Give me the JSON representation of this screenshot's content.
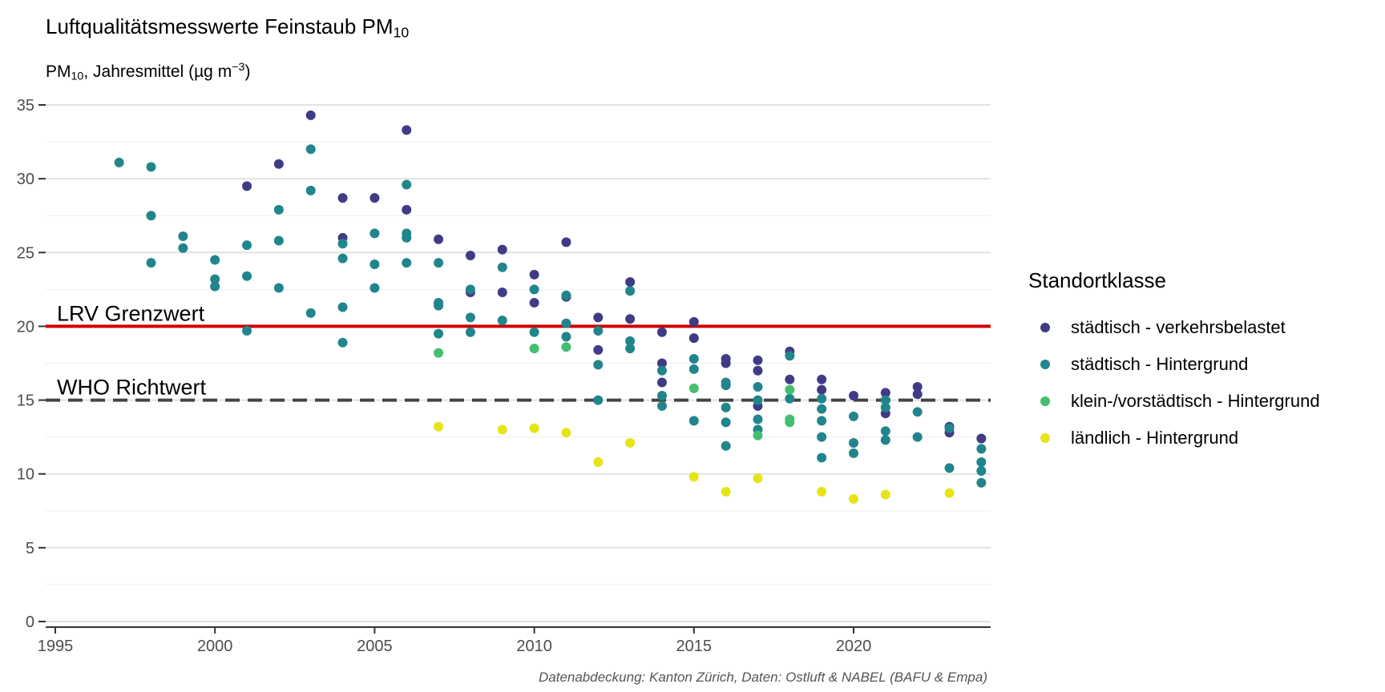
{
  "header": {
    "title_main": "Luftqualitätsmesswerte Feinstaub PM",
    "title_sub": "10",
    "subtitle_pm": "PM",
    "subtitle_sub": "10",
    "subtitle_rest": ", Jahresmittel (µg m",
    "subtitle_sup": "−3",
    "subtitle_end": ")"
  },
  "caption": "Datenabdeckung: Kanton Zürich, Daten: Ostluft & NABEL (BAFU & Empa)",
  "legend": {
    "title": "Standortklasse",
    "items": [
      {
        "label": "städtisch - verkehrsbelastet",
        "color": "#3f3c85"
      },
      {
        "label": "städtisch - Hintergrund",
        "color": "#21858c"
      },
      {
        "label": "klein-/vorstädtisch - Hintergrund",
        "color": "#44bf70"
      },
      {
        "label": "ländlich - Hintergrund",
        "color": "#e6e419"
      }
    ]
  },
  "chart_data": {
    "type": "scatter",
    "xlabel": "",
    "ylabel": "",
    "xlim": [
      1994.6,
      2024.3
    ],
    "ylim": [
      0,
      35
    ],
    "x_ticks": [
      1995,
      2000,
      2005,
      2010,
      2015,
      2020
    ],
    "y_ticks": [
      0,
      5,
      10,
      15,
      20,
      25,
      30,
      35
    ],
    "grid": true,
    "legend_position": "right",
    "reference_lines": [
      {
        "label": "LRV Grenzwert",
        "y": 20,
        "color": "#cc0000",
        "style": "solid"
      },
      {
        "label": "WHO Richtwert",
        "y": 15,
        "color": "#444444",
        "style": "dashed"
      }
    ],
    "series": [
      {
        "name": "städtisch - verkehrsbelastet",
        "color": "#3f3c85",
        "points": [
          [
            2001,
            29.5
          ],
          [
            2002,
            31.0
          ],
          [
            2003,
            34.3
          ],
          [
            2004,
            28.7
          ],
          [
            2004,
            26.0
          ],
          [
            2005,
            28.7
          ],
          [
            2006,
            33.3
          ],
          [
            2006,
            27.9
          ],
          [
            2007,
            25.9
          ],
          [
            2008,
            24.8
          ],
          [
            2008,
            22.3
          ],
          [
            2009,
            25.2
          ],
          [
            2009,
            22.3
          ],
          [
            2010,
            23.5
          ],
          [
            2010,
            21.6
          ],
          [
            2011,
            25.7
          ],
          [
            2011,
            22.0
          ],
          [
            2012,
            20.6
          ],
          [
            2012,
            18.4
          ],
          [
            2013,
            23.0
          ],
          [
            2013,
            20.5
          ],
          [
            2014,
            19.6
          ],
          [
            2014,
            17.5
          ],
          [
            2014,
            16.2
          ],
          [
            2015,
            20.3
          ],
          [
            2015,
            19.2
          ],
          [
            2016,
            17.8
          ],
          [
            2016,
            17.5
          ],
          [
            2017,
            17.7
          ],
          [
            2017,
            17.0
          ],
          [
            2017,
            14.6
          ],
          [
            2018,
            18.3
          ],
          [
            2018,
            16.4
          ],
          [
            2019,
            16.4
          ],
          [
            2019,
            15.7
          ],
          [
            2020,
            15.3
          ],
          [
            2021,
            15.5
          ],
          [
            2021,
            14.1
          ],
          [
            2022,
            15.9
          ],
          [
            2022,
            15.4
          ],
          [
            2023,
            13.2
          ],
          [
            2023,
            12.8
          ],
          [
            2024,
            12.4
          ]
        ]
      },
      {
        "name": "städtisch - Hintergrund",
        "color": "#21858c",
        "points": [
          [
            1997,
            31.1
          ],
          [
            1998,
            30.8
          ],
          [
            1998,
            27.5
          ],
          [
            1998,
            24.3
          ],
          [
            1999,
            26.1
          ],
          [
            1999,
            25.3
          ],
          [
            2000,
            24.5
          ],
          [
            2000,
            23.2
          ],
          [
            2000,
            22.7
          ],
          [
            2001,
            25.5
          ],
          [
            2001,
            23.4
          ],
          [
            2001,
            19.7
          ],
          [
            2002,
            27.9
          ],
          [
            2002,
            25.8
          ],
          [
            2002,
            22.6
          ],
          [
            2003,
            32.0
          ],
          [
            2003,
            29.2
          ],
          [
            2003,
            20.9
          ],
          [
            2004,
            25.6
          ],
          [
            2004,
            24.6
          ],
          [
            2004,
            21.3
          ],
          [
            2004,
            18.9
          ],
          [
            2005,
            26.3
          ],
          [
            2005,
            24.2
          ],
          [
            2005,
            22.6
          ],
          [
            2006,
            29.6
          ],
          [
            2006,
            26.3
          ],
          [
            2006,
            26.0
          ],
          [
            2006,
            24.3
          ],
          [
            2007,
            24.3
          ],
          [
            2007,
            21.6
          ],
          [
            2007,
            21.4
          ],
          [
            2007,
            19.5
          ],
          [
            2008,
            22.5
          ],
          [
            2008,
            20.6
          ],
          [
            2008,
            19.6
          ],
          [
            2009,
            24.0
          ],
          [
            2009,
            20.4
          ],
          [
            2010,
            22.5
          ],
          [
            2010,
            19.6
          ],
          [
            2011,
            22.1
          ],
          [
            2011,
            20.2
          ],
          [
            2011,
            19.3
          ],
          [
            2012,
            19.7
          ],
          [
            2012,
            17.4
          ],
          [
            2012,
            15.0
          ],
          [
            2013,
            22.4
          ],
          [
            2013,
            19.0
          ],
          [
            2013,
            18.5
          ],
          [
            2014,
            17.0
          ],
          [
            2014,
            15.3
          ],
          [
            2014,
            14.6
          ],
          [
            2015,
            17.8
          ],
          [
            2015,
            17.1
          ],
          [
            2015,
            13.6
          ],
          [
            2016,
            16.2
          ],
          [
            2016,
            16.0
          ],
          [
            2016,
            14.5
          ],
          [
            2016,
            13.5
          ],
          [
            2016,
            11.9
          ],
          [
            2017,
            15.9
          ],
          [
            2017,
            15.0
          ],
          [
            2017,
            13.7
          ],
          [
            2017,
            13.0
          ],
          [
            2018,
            18.0
          ],
          [
            2018,
            15.1
          ],
          [
            2019,
            15.1
          ],
          [
            2019,
            14.4
          ],
          [
            2019,
            13.6
          ],
          [
            2019,
            12.5
          ],
          [
            2019,
            11.1
          ],
          [
            2020,
            13.9
          ],
          [
            2020,
            12.1
          ],
          [
            2020,
            11.4
          ],
          [
            2021,
            15.0
          ],
          [
            2021,
            14.5
          ],
          [
            2021,
            12.9
          ],
          [
            2021,
            12.3
          ],
          [
            2022,
            14.2
          ],
          [
            2022,
            12.5
          ],
          [
            2023,
            13.1
          ],
          [
            2023,
            10.4
          ],
          [
            2024,
            11.7
          ],
          [
            2024,
            10.8
          ],
          [
            2024,
            10.2
          ],
          [
            2024,
            9.4
          ]
        ]
      },
      {
        "name": "klein-/vorstädtisch - Hintergrund",
        "color": "#44bf70",
        "points": [
          [
            2007,
            18.2
          ],
          [
            2010,
            18.5
          ],
          [
            2011,
            18.6
          ],
          [
            2015,
            15.8
          ],
          [
            2017,
            12.6
          ],
          [
            2018,
            15.7
          ],
          [
            2018,
            13.7
          ],
          [
            2018,
            13.5
          ]
        ]
      },
      {
        "name": "ländlich - Hintergrund",
        "color": "#e6e419",
        "points": [
          [
            2007,
            13.2
          ],
          [
            2009,
            13.0
          ],
          [
            2010,
            13.1
          ],
          [
            2011,
            12.8
          ],
          [
            2012,
            10.8
          ],
          [
            2013,
            12.1
          ],
          [
            2015,
            9.8
          ],
          [
            2016,
            8.8
          ],
          [
            2017,
            9.7
          ],
          [
            2019,
            8.8
          ],
          [
            2020,
            8.3
          ],
          [
            2021,
            8.6
          ],
          [
            2023,
            8.7
          ]
        ]
      }
    ]
  }
}
